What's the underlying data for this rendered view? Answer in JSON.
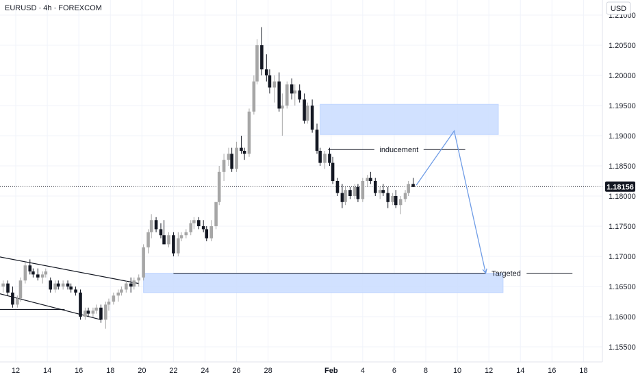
{
  "title": "EURUSD · 4h · FOREXCOM",
  "currency_button": "USD",
  "last_price_label": "1.18156",
  "colors": {
    "up_candle": "#a6a6a6",
    "down_candle": "#131722",
    "zone_fill": "#cfe0ff",
    "zone_border": "#bcd3ff",
    "projection": "#6f9ce6",
    "price_tag": "#131722",
    "grid": "#f0f3fa"
  },
  "chart_data": {
    "type": "candlestick",
    "title": "EURUSD · 4h · FOREXCOM",
    "ylim": [
      1.1525,
      1.2125
    ],
    "y_ticks": [
      "1.21000",
      "1.20500",
      "1.20000",
      "1.19500",
      "1.19000",
      "1.18500",
      "1.18000",
      "1.17500",
      "1.17000",
      "1.16500",
      "1.16000",
      "1.15500"
    ],
    "y_tick_values": [
      1.21,
      1.205,
      1.2,
      1.195,
      1.19,
      1.185,
      1.18,
      1.175,
      1.17,
      1.165,
      1.16,
      1.155
    ],
    "x_ticks": [
      "12",
      "14",
      "16",
      "18",
      "20",
      "22",
      "24",
      "26",
      "28",
      "Feb",
      "4",
      "6",
      "8",
      "10",
      "12",
      "14",
      "16",
      "18"
    ],
    "x_tick_days": [
      12,
      14,
      16,
      18,
      20,
      22,
      24,
      26,
      28,
      32,
      34,
      36,
      38,
      40,
      42,
      44,
      46,
      48
    ],
    "x_bold": [
      "Feb"
    ],
    "xlim_days": [
      11.0,
      49.2
    ],
    "grid": true,
    "last_price": 1.18156,
    "candles": [
      [
        11.2,
        1.165,
        1.166,
        1.164,
        1.1655
      ],
      [
        11.5,
        1.1655,
        1.166,
        1.1635,
        1.164
      ],
      [
        11.8,
        1.164,
        1.165,
        1.1615,
        1.162
      ],
      [
        12.1,
        1.162,
        1.1635,
        1.1615,
        1.163
      ],
      [
        12.3,
        1.163,
        1.1665,
        1.1625,
        1.166
      ],
      [
        12.6,
        1.166,
        1.169,
        1.1655,
        1.1685
      ],
      [
        12.9,
        1.1685,
        1.1695,
        1.167,
        1.1675
      ],
      [
        13.1,
        1.1675,
        1.168,
        1.1665,
        1.167
      ],
      [
        13.4,
        1.167,
        1.168,
        1.166,
        1.1665
      ],
      [
        13.7,
        1.1665,
        1.1675,
        1.1655,
        1.167
      ],
      [
        13.9,
        1.167,
        1.168,
        1.1665,
        1.1675
      ],
      [
        14.2,
        1.166,
        1.1665,
        1.164,
        1.1645
      ],
      [
        14.5,
        1.1645,
        1.166,
        1.164,
        1.1655
      ],
      [
        14.7,
        1.1655,
        1.166,
        1.1645,
        1.165
      ],
      [
        15.0,
        1.165,
        1.166,
        1.1645,
        1.1655
      ],
      [
        15.3,
        1.1655,
        1.166,
        1.1645,
        1.165
      ],
      [
        15.5,
        1.165,
        1.1655,
        1.164,
        1.1645
      ],
      [
        15.8,
        1.1645,
        1.165,
        1.1635,
        1.164
      ],
      [
        16.1,
        1.164,
        1.1645,
        1.1595,
        1.16
      ],
      [
        16.4,
        1.16,
        1.1615,
        1.1595,
        1.161
      ],
      [
        16.6,
        1.161,
        1.1615,
        1.16,
        1.1605
      ],
      [
        16.9,
        1.1605,
        1.1615,
        1.16,
        1.161
      ],
      [
        17.1,
        1.161,
        1.162,
        1.1605,
        1.1615
      ],
      [
        17.4,
        1.1615,
        1.162,
        1.159,
        1.1595
      ],
      [
        17.7,
        1.1595,
        1.1625,
        1.158,
        1.162
      ],
      [
        17.9,
        1.162,
        1.163,
        1.161,
        1.1625
      ],
      [
        18.2,
        1.1625,
        1.164,
        1.162,
        1.1635
      ],
      [
        18.5,
        1.1635,
        1.1645,
        1.1625,
        1.164
      ],
      [
        18.7,
        1.164,
        1.165,
        1.1635,
        1.1645
      ],
      [
        19.0,
        1.1645,
        1.166,
        1.164,
        1.1655
      ],
      [
        19.3,
        1.1655,
        1.1665,
        1.164,
        1.165
      ],
      [
        19.5,
        1.165,
        1.1665,
        1.1645,
        1.166
      ],
      [
        19.8,
        1.166,
        1.167,
        1.165,
        1.1665
      ],
      [
        20.1,
        1.1665,
        1.172,
        1.166,
        1.1715
      ],
      [
        20.4,
        1.1715,
        1.1745,
        1.1705,
        1.174
      ],
      [
        20.6,
        1.174,
        1.177,
        1.173,
        1.176
      ],
      [
        20.9,
        1.176,
        1.1765,
        1.174,
        1.1745
      ],
      [
        21.2,
        1.1745,
        1.1755,
        1.173,
        1.1735
      ],
      [
        21.4,
        1.1735,
        1.176,
        1.172,
        1.172
      ],
      [
        21.7,
        1.172,
        1.174,
        1.1715,
        1.1735
      ],
      [
        22.0,
        1.1735,
        1.174,
        1.17,
        1.1705
      ],
      [
        22.3,
        1.1705,
        1.174,
        1.17,
        1.173
      ],
      [
        22.5,
        1.173,
        1.174,
        1.1725,
        1.1735
      ],
      [
        22.8,
        1.1735,
        1.1745,
        1.173,
        1.174
      ],
      [
        23.1,
        1.174,
        1.176,
        1.1735,
        1.1755
      ],
      [
        23.3,
        1.1755,
        1.1765,
        1.1745,
        1.176
      ],
      [
        23.6,
        1.176,
        1.1765,
        1.1745,
        1.175
      ],
      [
        23.9,
        1.175,
        1.176,
        1.174,
        1.1745
      ],
      [
        24.1,
        1.1745,
        1.175,
        1.1725,
        1.173
      ],
      [
        24.4,
        1.173,
        1.176,
        1.1725,
        1.175
      ],
      [
        24.7,
        1.175,
        1.179,
        1.1745,
        1.179
      ],
      [
        24.9,
        1.179,
        1.185,
        1.1785,
        1.184
      ],
      [
        25.2,
        1.184,
        1.187,
        1.1825,
        1.186
      ],
      [
        25.5,
        1.186,
        1.188,
        1.185,
        1.187
      ],
      [
        25.7,
        1.187,
        1.188,
        1.184,
        1.1845
      ],
      [
        26.0,
        1.1845,
        1.189,
        1.184,
        1.188
      ],
      [
        26.3,
        1.188,
        1.19,
        1.187,
        1.1875
      ],
      [
        26.5,
        1.1875,
        1.188,
        1.186,
        1.187
      ],
      [
        26.8,
        1.187,
        1.1945,
        1.1865,
        1.194
      ],
      [
        27.1,
        1.194,
        1.2,
        1.1935,
        1.199
      ],
      [
        27.3,
        1.199,
        1.206,
        1.1985,
        1.205
      ],
      [
        27.6,
        1.205,
        1.208,
        1.2,
        1.201
      ],
      [
        27.9,
        1.201,
        1.2035,
        1.199,
        1.2
      ],
      [
        28.1,
        1.2,
        1.201,
        1.197,
        1.198
      ],
      [
        28.4,
        1.198,
        1.2,
        1.1955,
        1.199
      ],
      [
        28.7,
        1.199,
        1.2005,
        1.194,
        1.1945
      ],
      [
        28.9,
        1.1945,
        1.197,
        1.19,
        1.195
      ],
      [
        29.2,
        1.195,
        1.199,
        1.1945,
        1.1985
      ],
      [
        29.5,
        1.1985,
        1.1995,
        1.196,
        1.197
      ],
      [
        29.7,
        1.197,
        1.1985,
        1.195,
        1.1975
      ],
      [
        30.0,
        1.1975,
        1.1985,
        1.1955,
        1.196
      ],
      [
        30.3,
        1.196,
        1.197,
        1.192,
        1.1925
      ],
      [
        30.5,
        1.1925,
        1.1955,
        1.192,
        1.195
      ],
      [
        30.8,
        1.195,
        1.196,
        1.1905,
        1.191
      ],
      [
        31.1,
        1.191,
        1.192,
        1.187,
        1.1875
      ],
      [
        31.3,
        1.1875,
        1.188,
        1.185,
        1.1855
      ],
      [
        31.6,
        1.1855,
        1.1875,
        1.1845,
        1.187
      ],
      [
        31.9,
        1.187,
        1.188,
        1.185,
        1.1855
      ],
      [
        32.1,
        1.1855,
        1.1865,
        1.182,
        1.1825
      ],
      [
        32.4,
        1.1825,
        1.183,
        1.18,
        1.1805
      ],
      [
        32.7,
        1.1805,
        1.182,
        1.178,
        1.179
      ],
      [
        32.9,
        1.179,
        1.1815,
        1.1785,
        1.181
      ],
      [
        33.2,
        1.181,
        1.1815,
        1.1795,
        1.18
      ],
      [
        33.5,
        1.18,
        1.182,
        1.1795,
        1.1815
      ],
      [
        33.7,
        1.1815,
        1.182,
        1.179,
        1.1795
      ],
      [
        34.0,
        1.1795,
        1.183,
        1.179,
        1.1825
      ],
      [
        34.3,
        1.1825,
        1.1835,
        1.1815,
        1.183
      ],
      [
        34.5,
        1.183,
        1.184,
        1.182,
        1.1825
      ],
      [
        34.8,
        1.1825,
        1.183,
        1.18,
        1.1805
      ],
      [
        35.1,
        1.1805,
        1.1815,
        1.1795,
        1.181
      ],
      [
        35.3,
        1.181,
        1.182,
        1.18,
        1.1805
      ],
      [
        35.6,
        1.1805,
        1.1815,
        1.178,
        1.179
      ],
      [
        35.9,
        1.179,
        1.1805,
        1.1785,
        1.18
      ],
      [
        36.1,
        1.18,
        1.181,
        1.178,
        1.1785
      ],
      [
        36.4,
        1.1785,
        1.18,
        1.177,
        1.1795
      ],
      [
        36.7,
        1.1795,
        1.181,
        1.179,
        1.1805
      ],
      [
        36.9,
        1.1805,
        1.1825,
        1.18,
        1.182
      ],
      [
        37.2,
        1.182,
        1.183,
        1.1815,
        1.1815
      ]
    ],
    "zones": [
      {
        "name": "supply-zone",
        "day_start": 31.3,
        "day_end": 42.6,
        "price_top": 1.1952,
        "price_bottom": 1.1902
      },
      {
        "name": "demand-zone",
        "day_start": 20.1,
        "day_end": 42.9,
        "price_top": 1.1672,
        "price_bottom": 1.164
      }
    ],
    "channel_lines": [
      {
        "name": "channel-upper",
        "from": [
          10.4,
          1.1702
        ],
        "to": [
          19.8,
          1.1655
        ]
      },
      {
        "name": "channel-lower",
        "from": [
          10.4,
          1.1642
        ],
        "to": [
          17.4,
          1.1595
        ]
      },
      {
        "name": "level-line-left",
        "from": [
          10.4,
          1.1612
        ],
        "to": [
          15.1,
          1.1612
        ]
      }
    ],
    "level_lines": [
      {
        "name": "inducement-line",
        "from": [
          31.8,
          1.1877
        ],
        "to": [
          40.5,
          1.1877
        ],
        "label": "inducement",
        "label_day": 36.3
      },
      {
        "name": "targeted-line",
        "from": [
          22.0,
          1.1672
        ],
        "to": [
          47.3,
          1.1672
        ],
        "label": "Targeted",
        "label_day": 43.1
      }
    ],
    "projection": [
      [
        37.4,
        1.1818
      ],
      [
        39.8,
        1.1908
      ],
      [
        41.8,
        1.1672
      ]
    ]
  }
}
